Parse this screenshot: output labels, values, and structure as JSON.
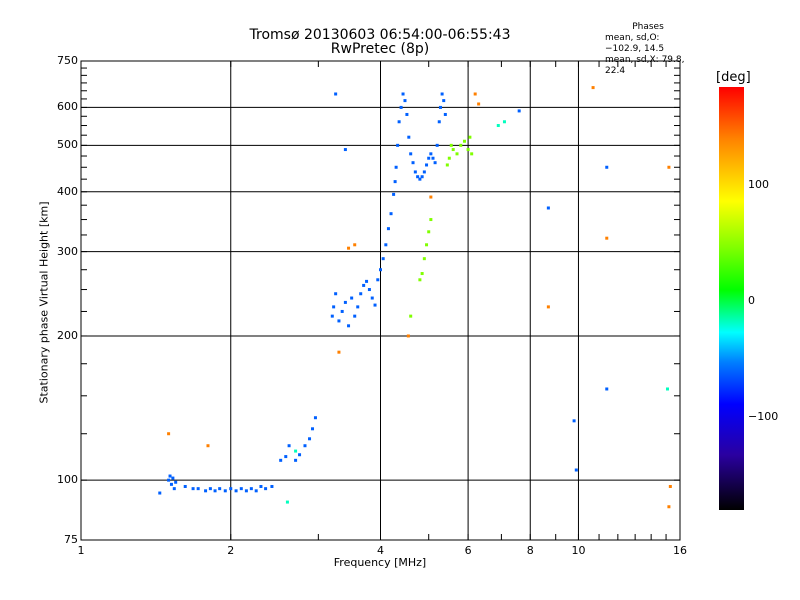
{
  "chart_data": {
    "type": "scatter",
    "title": "Tromsø 20130603 06:54:00-06:55:43",
    "subtitle": "RwPretec (8p)",
    "xlabel": "Frequency [MHz]",
    "ylabel": "Stationary phase Virtual Height [km]",
    "x_scale": "log",
    "y_scale": "log",
    "xlim": [
      1,
      16
    ],
    "ylim": [
      75,
      750
    ],
    "x_ticks": [
      1,
      2,
      4,
      6,
      8,
      10,
      16
    ],
    "x_tick_labels": [
      "1",
      "2",
      "4",
      "6",
      "8",
      "10",
      "16"
    ],
    "y_ticks": [
      75,
      100,
      200,
      300,
      400,
      500,
      600,
      750
    ],
    "y_tick_labels": [
      "75",
      "100",
      "200",
      "300",
      "400",
      "500",
      "600",
      "750"
    ],
    "grid": true,
    "colorbar": {
      "label": "[deg]",
      "ticks": [
        100,
        0,
        -100
      ],
      "tick_labels": [
        "100",
        "0",
        "−100"
      ],
      "range": [
        -180,
        180
      ]
    },
    "legend": {
      "title": "Phases",
      "lines": [
        "mean, sd,O:−102.9, 14.5",
        "mean, sd,X:  79.8, 22.4"
      ]
    },
    "series": [
      {
        "phase": -110,
        "points": [
          [
            1.44,
            94
          ],
          [
            1.5,
            100
          ],
          [
            1.51,
            102
          ],
          [
            1.52,
            98
          ],
          [
            1.53,
            101
          ],
          [
            1.54,
            96
          ],
          [
            1.55,
            99
          ],
          [
            1.62,
            97
          ],
          [
            1.68,
            96
          ],
          [
            1.72,
            96
          ],
          [
            1.78,
            95
          ],
          [
            1.82,
            96
          ],
          [
            1.86,
            95
          ],
          [
            1.9,
            96
          ],
          [
            1.95,
            95
          ],
          [
            2.0,
            96
          ],
          [
            2.05,
            95
          ],
          [
            2.1,
            96
          ],
          [
            2.15,
            95
          ],
          [
            2.2,
            96
          ],
          [
            2.25,
            95
          ],
          [
            2.3,
            97
          ],
          [
            2.35,
            96
          ],
          [
            2.42,
            97
          ],
          [
            2.52,
            110
          ],
          [
            2.58,
            112
          ],
          [
            2.62,
            118
          ],
          [
            2.7,
            110
          ],
          [
            2.75,
            113
          ],
          [
            2.82,
            118
          ],
          [
            2.88,
            122
          ],
          [
            2.92,
            128
          ],
          [
            2.96,
            135
          ],
          [
            3.2,
            220
          ],
          [
            3.22,
            230
          ],
          [
            3.25,
            245
          ],
          [
            3.3,
            215
          ],
          [
            3.35,
            225
          ],
          [
            3.4,
            235
          ],
          [
            3.45,
            210
          ],
          [
            3.5,
            240
          ],
          [
            3.55,
            220
          ],
          [
            3.6,
            230
          ],
          [
            3.65,
            245
          ],
          [
            3.7,
            255
          ],
          [
            3.75,
            260
          ],
          [
            3.8,
            250
          ],
          [
            3.85,
            240
          ],
          [
            3.9,
            232
          ],
          [
            3.95,
            262
          ],
          [
            4.0,
            275
          ],
          [
            4.05,
            290
          ],
          [
            4.1,
            310
          ],
          [
            4.15,
            335
          ],
          [
            4.2,
            360
          ],
          [
            4.25,
            395
          ],
          [
            4.28,
            420
          ],
          [
            4.3,
            450
          ],
          [
            4.33,
            500
          ],
          [
            4.36,
            560
          ],
          [
            4.4,
            600
          ],
          [
            4.44,
            640
          ],
          [
            4.48,
            620
          ],
          [
            4.52,
            580
          ],
          [
            4.56,
            520
          ],
          [
            4.6,
            480
          ],
          [
            4.65,
            460
          ],
          [
            4.7,
            440
          ],
          [
            4.75,
            430
          ],
          [
            4.8,
            425
          ],
          [
            4.85,
            430
          ],
          [
            4.9,
            440
          ],
          [
            4.95,
            455
          ],
          [
            5.0,
            470
          ],
          [
            5.05,
            480
          ],
          [
            5.1,
            470
          ],
          [
            5.15,
            460
          ],
          [
            5.2,
            500
          ],
          [
            5.25,
            560
          ],
          [
            5.28,
            600
          ],
          [
            5.32,
            640
          ],
          [
            5.36,
            620
          ],
          [
            5.4,
            580
          ],
          [
            3.25,
            640
          ],
          [
            3.4,
            490
          ],
          [
            8.7,
            370
          ],
          [
            9.8,
            133
          ],
          [
            9.9,
            105
          ],
          [
            11.4,
            450
          ],
          [
            11.4,
            155
          ],
          [
            7.6,
            590
          ]
        ]
      },
      {
        "phase": 60,
        "points": [
          [
            5.5,
            470
          ],
          [
            5.6,
            490
          ],
          [
            5.7,
            480
          ],
          [
            5.8,
            500
          ],
          [
            5.9,
            510
          ],
          [
            6.0,
            490
          ],
          [
            6.05,
            520
          ],
          [
            6.1,
            480
          ],
          [
            5.45,
            455
          ],
          [
            5.55,
            500
          ],
          [
            4.9,
            290
          ],
          [
            4.95,
            310
          ],
          [
            5.0,
            330
          ],
          [
            4.85,
            270
          ],
          [
            4.8,
            262
          ],
          [
            4.6,
            220
          ],
          [
            5.05,
            350
          ]
        ]
      },
      {
        "phase": 140,
        "points": [
          [
            1.5,
            125
          ],
          [
            1.8,
            118
          ],
          [
            3.3,
            185
          ],
          [
            3.45,
            305
          ],
          [
            3.55,
            310
          ],
          [
            4.55,
            200
          ],
          [
            5.05,
            390
          ],
          [
            6.2,
            640
          ],
          [
            6.3,
            610
          ],
          [
            8.7,
            230
          ],
          [
            10.7,
            660
          ],
          [
            11.4,
            320
          ],
          [
            15.2,
            450
          ],
          [
            15.2,
            88
          ],
          [
            15.3,
            97
          ]
        ]
      },
      {
        "phase": -40,
        "points": [
          [
            2.6,
            90
          ],
          [
            2.7,
            115
          ],
          [
            6.9,
            550
          ],
          [
            7.1,
            560
          ],
          [
            15.1,
            155
          ]
        ]
      }
    ]
  }
}
